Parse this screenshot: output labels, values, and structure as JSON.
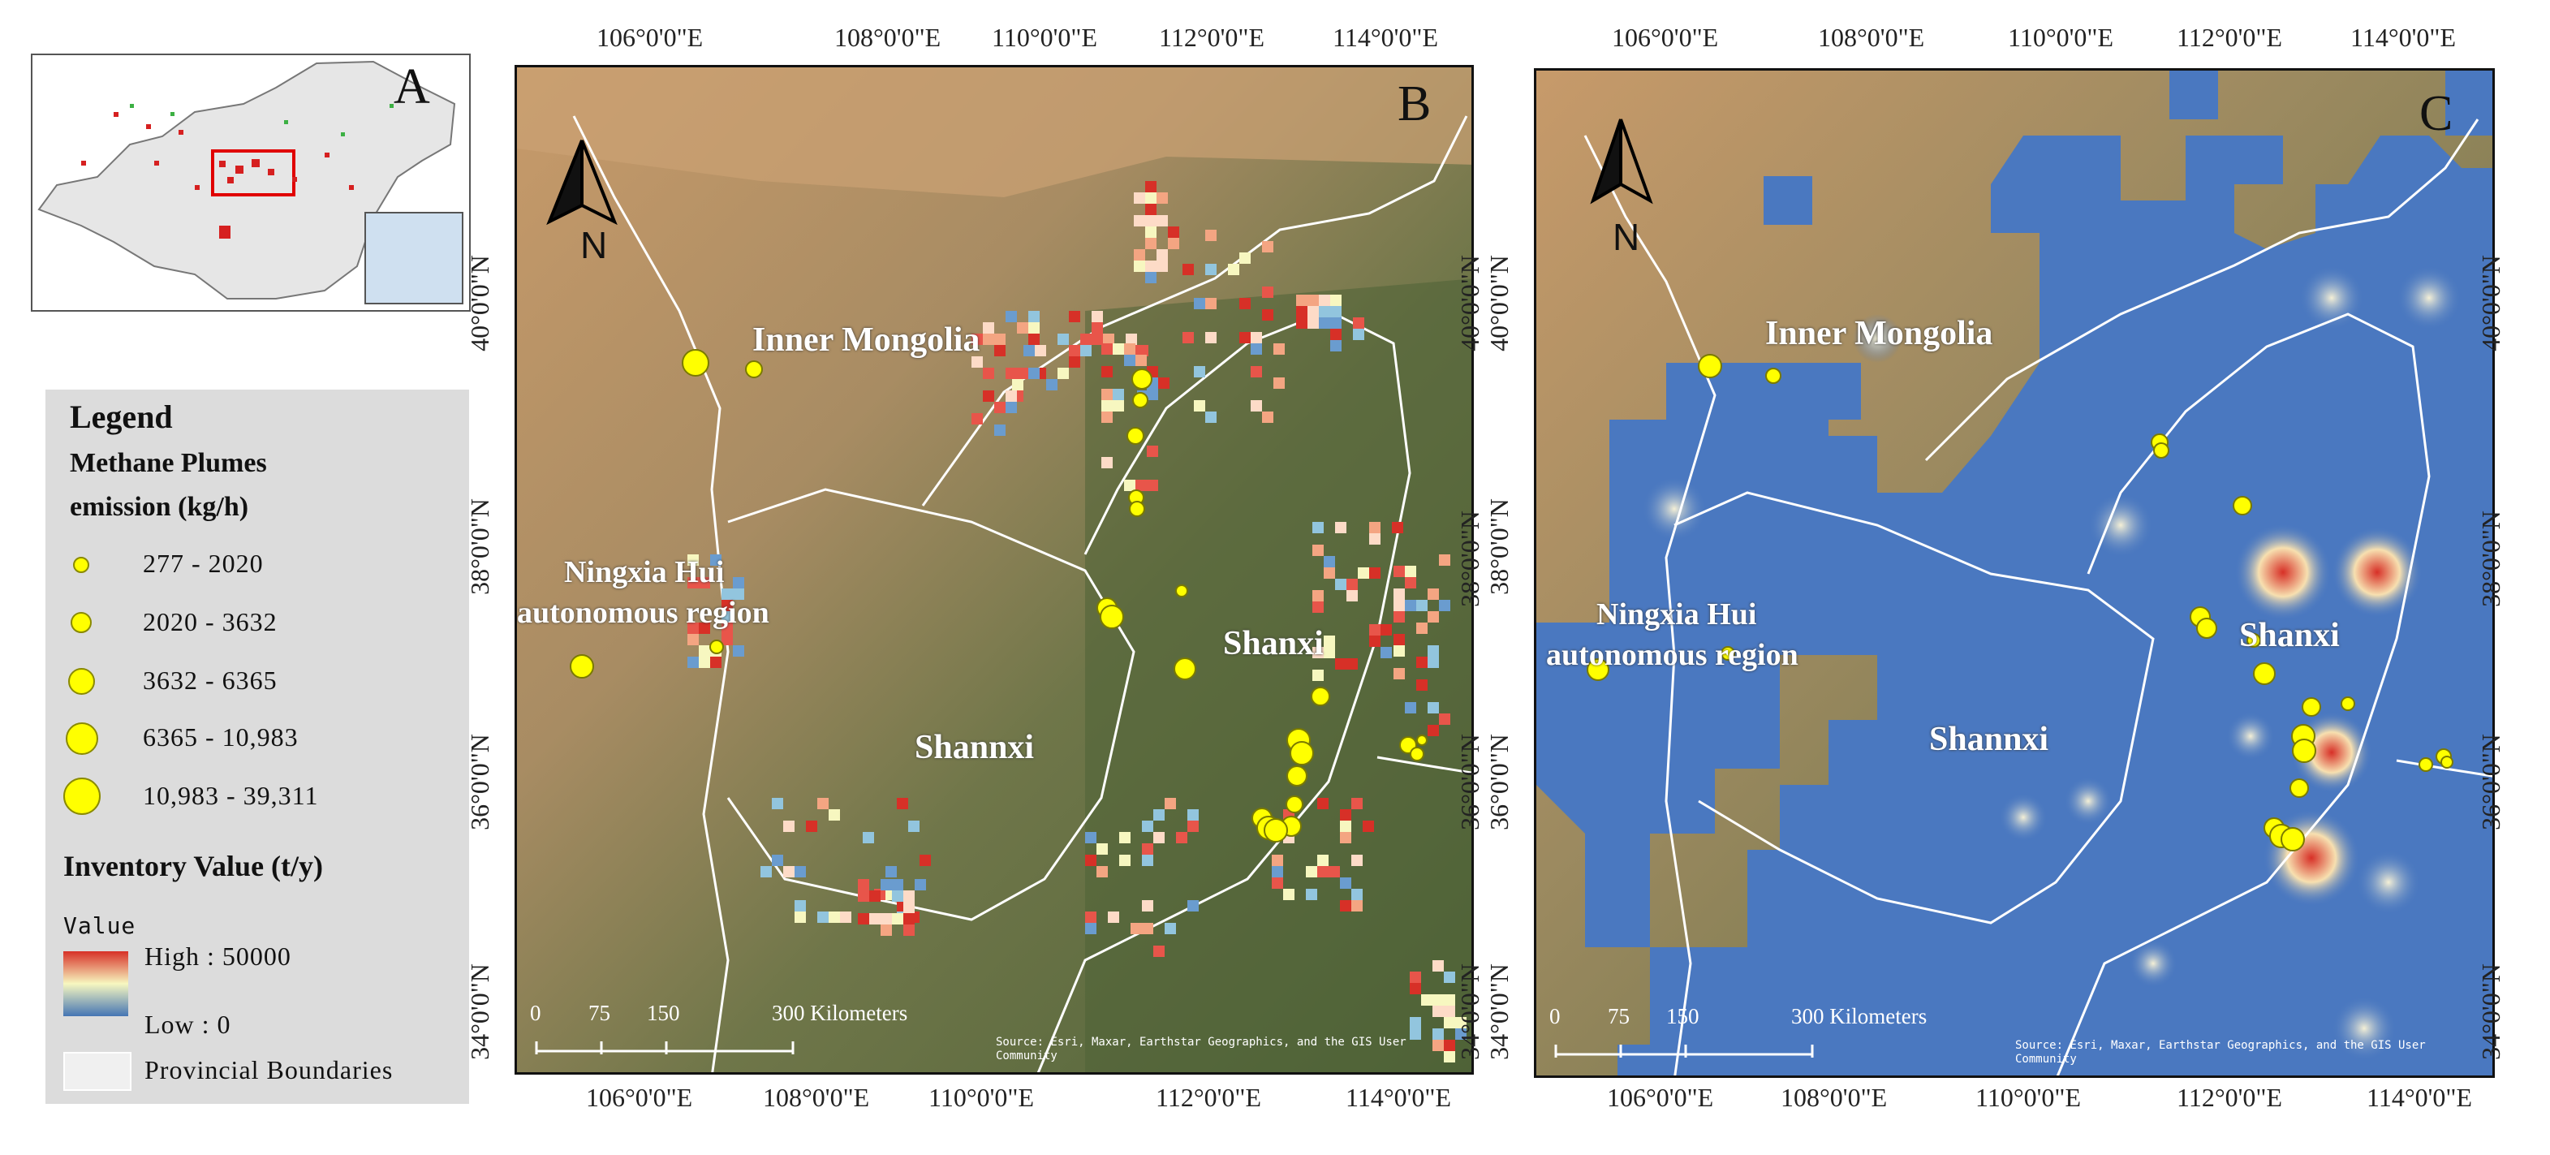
{
  "panels": {
    "A": {
      "letter": "A"
    },
    "B": {
      "letter": "B"
    },
    "C": {
      "letter": "C"
    }
  },
  "legend": {
    "title": "Legend",
    "plumes_title_1": "Methane Plumes",
    "plumes_title_2": "emission (kg/h)",
    "classes": [
      "277   -  2020",
      "2020   -  3632",
      "3632   -  6365",
      "6365   -  10,983",
      "10,983   -  39,311"
    ],
    "inventory_title": "Inventory Value (t/y)",
    "value_label": "Value",
    "high_label": "High : 50000",
    "low_label": "Low : 0",
    "boundary_label": "Provincial Boundaries",
    "ramp_colors": [
      "#d73027",
      "#f7f7c0",
      "#4575b4"
    ]
  },
  "map": {
    "north_label": "N",
    "x_ticks": [
      "106°0'0\"E",
      "108°0'0\"E",
      "110°0'0\"E",
      "112°0'0\"E",
      "114°0'0\"E"
    ],
    "y_ticks": [
      "40°0'0\"N",
      "38°0'0\"N",
      "36°0'0\"N",
      "34°0'0\"N"
    ],
    "places": {
      "inner_mongolia": "Inner Mongolia",
      "ningxia_1": "Ningxia Hui",
      "ningxia_2": "autonomous region",
      "shanxi": "Shanxi",
      "shannxi": "Shannxi"
    },
    "scale": {
      "n0": "0",
      "n1": "75",
      "n2": "150",
      "n3": "300 Kilometers"
    },
    "source_1": "Source: Esri, Maxar, Earthstar Geographics, and the GIS User",
    "source_2": "Community"
  }
}
